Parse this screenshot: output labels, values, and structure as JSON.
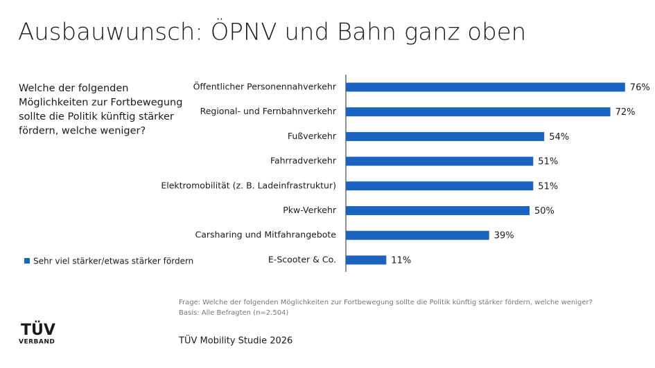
{
  "chart_data": {
    "type": "bar",
    "orientation": "horizontal",
    "title": "Ausbauwunsch: ÖPNV und Bahn ganz oben",
    "categories": [
      "Öffentlicher Personennahverkehr",
      "Regional- und Fernbahnverkehr",
      "Fußverkehr",
      "Fahrradverkehr",
      "Elektromobilität (z. B. Ladeinfrastruktur)",
      "Pkw-Verkehr",
      "Carsharing und Mitfahrangebote",
      "E-Scooter & Co."
    ],
    "series": [
      {
        "name": "Sehr viel stärker/etwas stärker fördern",
        "color": "#1a64c0",
        "values": [
          76,
          72,
          54,
          51,
          51,
          50,
          39,
          11
        ],
        "value_labels": [
          "76%",
          "72%",
          "54%",
          "51%",
          "51%",
          "50%",
          "39%",
          "11%"
        ]
      }
    ]
  },
  "question": [
    "Welche der folgenden",
    "Möglichkeiten zur Fortbewegung",
    "sollte die Politik künftig stärker",
    "fördern, welche weniger?"
  ],
  "footnotes": [
    "Frage: Welche der folgenden Möglichkeiten zur Fortbewegung sollte die Politik künftig stärker fördern, welche weniger?",
    "Basis: Alle Befragten (n=2.504)"
  ],
  "source": "TÜV Mobility Studie 2026",
  "logo": {
    "name": "TÜV",
    "sub": "VERBAND"
  }
}
